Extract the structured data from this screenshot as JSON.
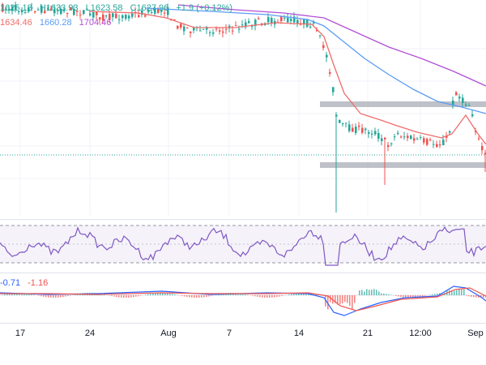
{
  "ohlc_legend": {
    "open": "1625.18",
    "high": "H1633.93",
    "low": "L1623.58",
    "close": "C1627.96",
    "change": "+1.9 (+0.12%)"
  },
  "ma_legend": {
    "ma1": "1634.46",
    "ma2": "1660.28",
    "ma3": "1704.46"
  },
  "macd_legend": {
    "macd": "-0.71",
    "signal": "-1.16"
  },
  "colors": {
    "up": "#26a69a",
    "down": "#ef5350",
    "ema_fast": "#ef6c6c",
    "ema_mid": "#5b9cf6",
    "ema_slow": "#b24fd6",
    "rsi": "#7e57c2",
    "zone": "#a9acb5",
    "price_line": "#26a69a"
  },
  "time_axis": {
    "ticks": [
      "17",
      "24",
      "Aug",
      "7",
      "14",
      "21",
      "12:00",
      "Sep"
    ]
  }
}
